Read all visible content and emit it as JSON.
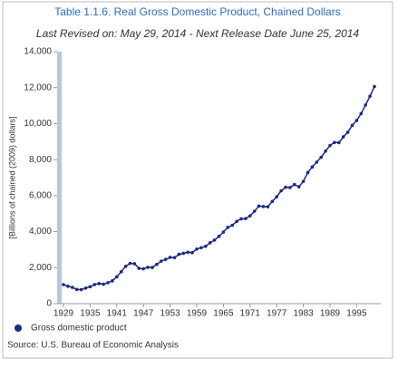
{
  "chart_data": {
    "type": "line",
    "title": "Table 1.1.6. Real Gross Domestic Product, Chained Dollars",
    "subtitle": "Last Revised on: May 29, 2014 - Next Release Date June 25, 2014",
    "y_label": "[Billions of chained (2009) dollars]",
    "source": "Source: U.S. Bureau of Economic Analysis",
    "x": [
      1929,
      1930,
      1931,
      1932,
      1933,
      1934,
      1935,
      1936,
      1937,
      1938,
      1939,
      1940,
      1941,
      1942,
      1943,
      1944,
      1945,
      1946,
      1947,
      1948,
      1949,
      1950,
      1951,
      1952,
      1953,
      1954,
      1955,
      1956,
      1957,
      1958,
      1959,
      1960,
      1961,
      1962,
      1963,
      1964,
      1965,
      1966,
      1967,
      1968,
      1969,
      1970,
      1971,
      1972,
      1973,
      1974,
      1975,
      1976,
      1977,
      1978,
      1979,
      1980,
      1981,
      1982,
      1983,
      1984,
      1985,
      1986,
      1987,
      1988,
      1989,
      1990,
      1991,
      1992,
      1993,
      1994,
      1995,
      1996,
      1997,
      1998,
      1999
    ],
    "series": [
      {
        "name": "Gross domestic product",
        "color": "#1b2a7e",
        "values": [
          1057,
          967,
          905,
          788,
          778,
          862,
          939,
          1061,
          1115,
          1078,
          1164,
          1266,
          1490,
          1772,
          2074,
          2239,
          2218,
          1961,
          1939,
          2020,
          2009,
          2184,
          2360,
          2456,
          2571,
          2557,
          2739,
          2797,
          2856,
          2835,
          3031,
          3109,
          3188,
          3383,
          3530,
          3734,
          3977,
          4238,
          4355,
          4569,
          4713,
          4722,
          4878,
          5134,
          5424,
          5396,
          5385,
          5675,
          5937,
          6267,
          6466,
          6450,
          6618,
          6491,
          6792,
          7285,
          7594,
          7861,
          8133,
          8475,
          8786,
          8955,
          8948,
          9267,
          9521,
          9905,
          10175,
          10561,
          11035,
          11526,
          12066
        ]
      }
    ],
    "xlim": [
      1929,
      1999
    ],
    "xticks": [
      1929,
      1935,
      1941,
      1947,
      1953,
      1959,
      1965,
      1971,
      1977,
      1983,
      1989,
      1995
    ],
    "ylim": [
      0,
      14000
    ],
    "yticks": [
      0,
      {
        "value": 2000,
        "label": "2,000"
      },
      {
        "value": 4000,
        "label": "4,000"
      },
      {
        "value": 6000,
        "label": "6,000"
      },
      {
        "value": 8000,
        "label": "8,000"
      },
      {
        "value": 10000,
        "label": "10,000"
      },
      {
        "value": 12000,
        "label": "12,000"
      },
      {
        "value": 14000,
        "label": "14,000"
      }
    ],
    "grid": false
  }
}
